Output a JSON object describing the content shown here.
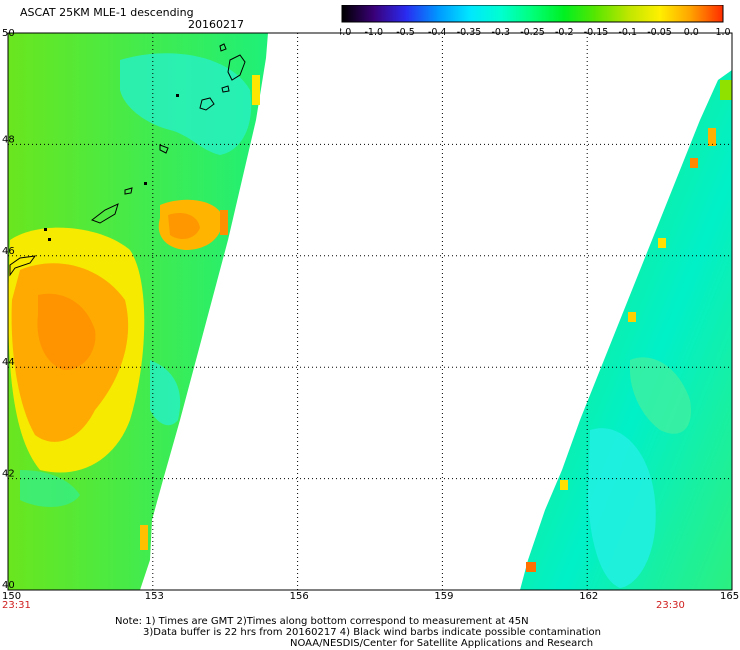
{
  "header": {
    "title": "ASCAT 25KM MLE-1 descending",
    "date": "20160217"
  },
  "colorbar": {
    "labels": [
      "-3.0",
      "-1.0",
      "-0.5",
      "-0.4",
      "-0.35",
      "-0.3",
      "-0.25",
      "-0.2",
      "-0.15",
      "-0.1",
      "-0.05",
      "0.0",
      "1.0"
    ],
    "colors": [
      "#000000",
      "#3a0078",
      "#2a2af0",
      "#0096ff",
      "#00e6ff",
      "#00ffd0",
      "#00ff78",
      "#00f020",
      "#5ae600",
      "#bde600",
      "#fff000",
      "#ffa000",
      "#ff2a00"
    ]
  },
  "map": {
    "lon_labels": [
      "150",
      "153",
      "156",
      "159",
      "162",
      "165"
    ],
    "lat_labels": [
      "40",
      "42",
      "44",
      "46",
      "48",
      "50"
    ],
    "time_left": "23:31",
    "time_right": "23:30",
    "time_color": "#d02020"
  },
  "notes": {
    "line1": "Note: 1) Times are GMT 2)Times along bottom correspond to measurement at 45N",
    "line2": "3)Data buffer is 22 hrs from 20160217 4) Black wind barbs indicate possible contamination",
    "line3": "NOAA/NESDIS/Center for Satellite Applications and Research"
  }
}
